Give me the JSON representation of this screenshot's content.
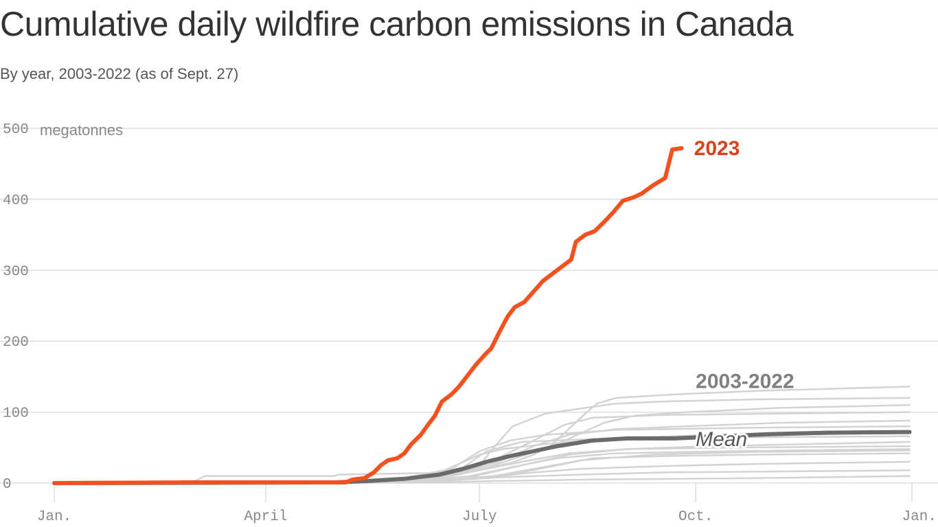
{
  "chart_data": {
    "type": "line",
    "title": "Cumulative daily wildfire carbon emissions in Canada",
    "subtitle": "By year, 2003-2022 (as of Sept. 27)",
    "x_unit": "day of year",
    "x_ticks": [
      {
        "label": "Jan.",
        "day": 1
      },
      {
        "label": "April",
        "day": 91
      },
      {
        "label": "July",
        "day": 182
      },
      {
        "label": "Oct.",
        "day": 274
      },
      {
        "label": "Jan.",
        "day": 366
      }
    ],
    "y_unit_label": "megatonnes",
    "ylim": [
      0,
      500
    ],
    "y_ticks": [
      0,
      100,
      200,
      300,
      400,
      500
    ],
    "grid": true,
    "colors": {
      "highlight": "#f4511e",
      "mean": "#6b6b6b",
      "background_series": "#d3d3d3",
      "grid": "#dddddd",
      "highlight_label": "#d9431c"
    },
    "labels": {
      "highlight": "2023",
      "background": "2003-2022",
      "mean": "Mean"
    },
    "series_2023": [
      [
        1,
        0
      ],
      [
        60,
        1
      ],
      [
        125,
        1
      ],
      [
        128,
        5
      ],
      [
        133,
        7
      ],
      [
        137,
        15
      ],
      [
        140,
        25
      ],
      [
        143,
        32
      ],
      [
        147,
        35
      ],
      [
        150,
        42
      ],
      [
        153,
        55
      ],
      [
        157,
        68
      ],
      [
        160,
        82
      ],
      [
        163,
        95
      ],
      [
        166,
        115
      ],
      [
        170,
        125
      ],
      [
        173,
        135
      ],
      [
        177,
        152
      ],
      [
        180,
        165
      ],
      [
        184,
        180
      ],
      [
        187,
        190
      ],
      [
        190,
        210
      ],
      [
        194,
        235
      ],
      [
        197,
        248
      ],
      [
        201,
        255
      ],
      [
        205,
        270
      ],
      [
        209,
        285
      ],
      [
        213,
        295
      ],
      [
        217,
        305
      ],
      [
        221,
        315
      ],
      [
        223,
        340
      ],
      [
        227,
        350
      ],
      [
        231,
        355
      ],
      [
        235,
        368
      ],
      [
        239,
        382
      ],
      [
        243,
        398
      ],
      [
        247,
        402
      ],
      [
        251,
        408
      ],
      [
        256,
        420
      ],
      [
        261,
        430
      ],
      [
        264,
        470
      ],
      [
        268,
        472
      ]
    ],
    "series_mean": [
      [
        1,
        0
      ],
      [
        120,
        1
      ],
      [
        135,
        3
      ],
      [
        150,
        6
      ],
      [
        165,
        12
      ],
      [
        175,
        20
      ],
      [
        185,
        30
      ],
      [
        195,
        38
      ],
      [
        205,
        45
      ],
      [
        215,
        52
      ],
      [
        230,
        60
      ],
      [
        245,
        63
      ],
      [
        265,
        63
      ],
      [
        285,
        66
      ],
      [
        305,
        69
      ],
      [
        330,
        71
      ],
      [
        365,
        72
      ]
    ],
    "series_background": [
      [
        [
          1,
          0
        ],
        [
          60,
          1
        ],
        [
          65,
          10
        ],
        [
          120,
          10
        ],
        [
          122,
          12
        ],
        [
          175,
          15
        ],
        [
          182,
          25
        ],
        [
          188,
          50
        ],
        [
          196,
          80
        ],
        [
          210,
          98
        ],
        [
          225,
          105
        ],
        [
          240,
          112
        ],
        [
          260,
          115
        ],
        [
          300,
          118
        ],
        [
          365,
          120
        ]
      ],
      [
        [
          1,
          0
        ],
        [
          140,
          1
        ],
        [
          160,
          8
        ],
        [
          180,
          18
        ],
        [
          195,
          28
        ],
        [
          205,
          40
        ],
        [
          212,
          52
        ],
        [
          218,
          70
        ],
        [
          226,
          95
        ],
        [
          232,
          112
        ],
        [
          240,
          120
        ],
        [
          265,
          125
        ],
        [
          300,
          130
        ],
        [
          365,
          136
        ]
      ],
      [
        [
          1,
          0
        ],
        [
          150,
          1
        ],
        [
          170,
          10
        ],
        [
          185,
          22
        ],
        [
          200,
          38
        ],
        [
          215,
          55
        ],
        [
          225,
          70
        ],
        [
          235,
          85
        ],
        [
          248,
          95
        ],
        [
          270,
          100
        ],
        [
          310,
          106
        ],
        [
          365,
          110
        ]
      ],
      [
        [
          1,
          0
        ],
        [
          150,
          1
        ],
        [
          172,
          12
        ],
        [
          190,
          30
        ],
        [
          205,
          52
        ],
        [
          220,
          68
        ],
        [
          240,
          76
        ],
        [
          270,
          80
        ],
        [
          310,
          85
        ],
        [
          365,
          88
        ]
      ],
      [
        [
          1,
          0
        ],
        [
          140,
          1
        ],
        [
          165,
          15
        ],
        [
          182,
          40
        ],
        [
          192,
          48
        ],
        [
          210,
          55
        ],
        [
          240,
          63
        ],
        [
          280,
          68
        ],
        [
          365,
          72
        ]
      ],
      [
        [
          1,
          0
        ],
        [
          140,
          1
        ],
        [
          170,
          10
        ],
        [
          185,
          20
        ],
        [
          200,
          30
        ],
        [
          220,
          42
        ],
        [
          245,
          48
        ],
        [
          280,
          52
        ],
        [
          365,
          58
        ]
      ],
      [
        [
          1,
          0
        ],
        [
          145,
          1
        ],
        [
          170,
          5
        ],
        [
          195,
          12
        ],
        [
          215,
          25
        ],
        [
          230,
          35
        ],
        [
          260,
          38
        ],
        [
          300,
          40
        ],
        [
          365,
          42
        ]
      ],
      [
        [
          1,
          0
        ],
        [
          150,
          1
        ],
        [
          180,
          6
        ],
        [
          205,
          15
        ],
        [
          225,
          20
        ],
        [
          260,
          24
        ],
        [
          300,
          27
        ],
        [
          365,
          30
        ]
      ],
      [
        [
          1,
          0
        ],
        [
          145,
          1
        ],
        [
          170,
          4
        ],
        [
          190,
          8
        ],
        [
          225,
          12
        ],
        [
          260,
          15
        ],
        [
          365,
          18
        ]
      ],
      [
        [
          1,
          0
        ],
        [
          160,
          1
        ],
        [
          190,
          3
        ],
        [
          230,
          5
        ],
        [
          300,
          7
        ],
        [
          365,
          10
        ]
      ],
      [
        [
          1,
          0
        ],
        [
          135,
          1
        ],
        [
          160,
          12
        ],
        [
          175,
          22
        ],
        [
          185,
          45
        ],
        [
          200,
          58
        ],
        [
          230,
          62
        ],
        [
          270,
          64
        ],
        [
          365,
          66
        ]
      ],
      [
        [
          1,
          0
        ],
        [
          150,
          1
        ],
        [
          180,
          10
        ],
        [
          200,
          25
        ],
        [
          220,
          40
        ],
        [
          245,
          48
        ],
        [
          290,
          50
        ],
        [
          365,
          52
        ]
      ],
      [
        [
          1,
          0
        ],
        [
          155,
          1
        ],
        [
          185,
          8
        ],
        [
          205,
          20
        ],
        [
          225,
          32
        ],
        [
          255,
          40
        ],
        [
          300,
          44
        ],
        [
          365,
          46
        ]
      ],
      [
        [
          1,
          0
        ],
        [
          140,
          1
        ],
        [
          170,
          20
        ],
        [
          182,
          45
        ],
        [
          195,
          60
        ],
        [
          210,
          68
        ],
        [
          240,
          75
        ],
        [
          300,
          78
        ],
        [
          365,
          80
        ]
      ],
      [
        [
          1,
          0
        ],
        [
          150,
          1
        ],
        [
          175,
          15
        ],
        [
          190,
          35
        ],
        [
          205,
          60
        ],
        [
          218,
          82
        ],
        [
          230,
          92
        ],
        [
          260,
          96
        ],
        [
          310,
          98
        ],
        [
          365,
          100
        ]
      ],
      [
        [
          1,
          0
        ],
        [
          150,
          1
        ],
        [
          178,
          10
        ],
        [
          195,
          22
        ],
        [
          215,
          35
        ],
        [
          240,
          42
        ],
        [
          290,
          45
        ],
        [
          365,
          48
        ]
      ]
    ]
  }
}
